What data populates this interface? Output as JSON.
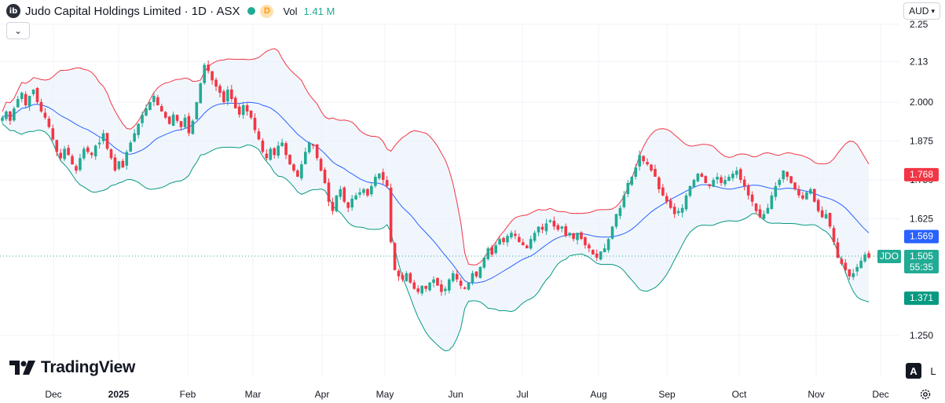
{
  "header": {
    "logo_text": "ib",
    "title": "Judo Capital Holdings Limited · 1D · ASX",
    "timeframe_badge": "D",
    "vol_label": "Vol",
    "vol_value": "1.41 M"
  },
  "currency": {
    "label": "AUD"
  },
  "branding": {
    "name": "TradingView"
  },
  "scale_buttons": {
    "auto": "A",
    "log": "L"
  },
  "colors": {
    "up": "#22ab94",
    "down": "#f23645",
    "upper_band": "#f23645",
    "lower_band": "#089981",
    "basis": "#2962ff",
    "band_fill": "#e8f0fb",
    "grid": "#f0f3fa"
  },
  "chart_data": {
    "type": "candlestick",
    "symbol": "JDO",
    "title": "Judo Capital Holdings Limited · 1D · ASX",
    "y_ticks": [
      "2.25",
      "2.13",
      "2.000",
      "1.875",
      "1.750",
      "1.625",
      "1.250"
    ],
    "x_ticks": [
      "Dec",
      "2025",
      "Feb",
      "Mar",
      "Apr",
      "May",
      "Jun",
      "Jul",
      "Aug",
      "Sep",
      "Oct",
      "Nov",
      "Dec"
    ],
    "ylim": [
      1.2,
      2.25
    ],
    "grid": true,
    "indicators": [
      "Bollinger Bands (upper)",
      "Bollinger Bands (basis)",
      "Bollinger Bands (lower)"
    ],
    "price_labels": {
      "upper_band": "1.768",
      "basis": "1.569",
      "last_price": "1.505",
      "countdown": "55:35",
      "lower_band": "1.371"
    },
    "close_series": [
      1.95,
      1.97,
      1.94,
      1.98,
      2.01,
      2.03,
      1.99,
      2.02,
      2.04,
      2.0,
      1.97,
      1.95,
      1.92,
      1.88,
      1.84,
      1.82,
      1.85,
      1.83,
      1.8,
      1.78,
      1.82,
      1.85,
      1.84,
      1.83,
      1.86,
      1.87,
      1.9,
      1.85,
      1.82,
      1.78,
      1.81,
      1.79,
      1.84,
      1.87,
      1.9,
      1.93,
      1.96,
      1.98,
      2.0,
      2.02,
      1.99,
      1.97,
      1.95,
      1.93,
      1.96,
      1.94,
      1.92,
      1.95,
      1.9,
      1.94,
      2.0,
      2.06,
      2.12,
      2.1,
      2.07,
      2.05,
      2.03,
      2.0,
      2.04,
      2.01,
      1.98,
      1.96,
      1.99,
      1.97,
      1.95,
      1.91,
      1.88,
      1.84,
      1.82,
      1.85,
      1.83,
      1.86,
      1.87,
      1.83,
      1.8,
      1.78,
      1.76,
      1.8,
      1.84,
      1.87,
      1.86,
      1.82,
      1.78,
      1.74,
      1.68,
      1.65,
      1.7,
      1.72,
      1.68,
      1.66,
      1.69,
      1.7,
      1.71,
      1.72,
      1.7,
      1.73,
      1.76,
      1.77,
      1.75,
      1.73,
      1.55,
      1.46,
      1.44,
      1.43,
      1.45,
      1.42,
      1.4,
      1.39,
      1.41,
      1.4,
      1.42,
      1.43,
      1.41,
      1.39,
      1.4,
      1.43,
      1.45,
      1.43,
      1.41,
      1.4,
      1.42,
      1.45,
      1.44,
      1.47,
      1.5,
      1.53,
      1.51,
      1.54,
      1.56,
      1.55,
      1.57,
      1.58,
      1.57,
      1.55,
      1.54,
      1.53,
      1.56,
      1.58,
      1.6,
      1.59,
      1.61,
      1.62,
      1.6,
      1.59,
      1.6,
      1.57,
      1.58,
      1.56,
      1.58,
      1.56,
      1.54,
      1.53,
      1.51,
      1.5,
      1.52,
      1.53,
      1.56,
      1.6,
      1.64,
      1.66,
      1.7,
      1.74,
      1.76,
      1.79,
      1.83,
      1.81,
      1.8,
      1.78,
      1.76,
      1.72,
      1.7,
      1.68,
      1.66,
      1.64,
      1.65,
      1.66,
      1.7,
      1.73,
      1.75,
      1.77,
      1.76,
      1.74,
      1.73,
      1.75,
      1.76,
      1.74,
      1.75,
      1.76,
      1.77,
      1.78,
      1.75,
      1.73,
      1.7,
      1.68,
      1.65,
      1.63,
      1.64,
      1.66,
      1.7,
      1.73,
      1.75,
      1.78,
      1.76,
      1.74,
      1.72,
      1.7,
      1.69,
      1.71,
      1.72,
      1.68,
      1.65,
      1.63,
      1.64,
      1.6,
      1.55,
      1.5,
      1.48,
      1.46,
      1.44,
      1.45,
      1.47,
      1.49,
      1.51,
      1.5
    ]
  }
}
